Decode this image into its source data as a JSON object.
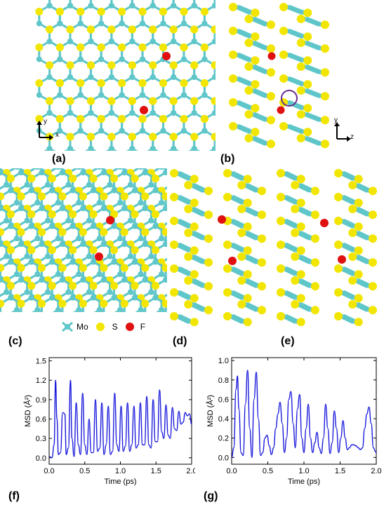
{
  "panels": {
    "a": "(a)",
    "b": "(b)",
    "c": "(c)",
    "d": "(d)",
    "e": "(e)",
    "f": "(f)",
    "g": "(g)"
  },
  "axes_glyphs": {
    "a": {
      "v": "y",
      "h": "x"
    },
    "b": {
      "v": "y",
      "h": "z"
    }
  },
  "legend": {
    "mo": "Mo",
    "s": "S",
    "f": "F",
    "colors": {
      "mo": "#5fc6c9",
      "s": "#f2e600",
      "f": "#e01010"
    }
  },
  "chart_data": [
    {
      "type": "line",
      "panel": "(f)",
      "xlabel": "Time (ps)",
      "ylabel": "MSD (Å²)",
      "xlim": [
        0.0,
        2.0
      ],
      "ylim": [
        -0.1,
        1.55
      ],
      "xticks": [
        "0.0",
        "0.5",
        "1.0",
        "1.5",
        "2.0"
      ],
      "yticks": [
        "0.0",
        "0.3",
        "0.6",
        "0.9",
        "1.2",
        "1.5"
      ],
      "color": "#1a1adc",
      "x": [
        0.0,
        0.04,
        0.07,
        0.09,
        0.11,
        0.13,
        0.16,
        0.19,
        0.22,
        0.24,
        0.27,
        0.3,
        0.32,
        0.35,
        0.38,
        0.41,
        0.44,
        0.47,
        0.5,
        0.53,
        0.56,
        0.59,
        0.62,
        0.65,
        0.68,
        0.71,
        0.74,
        0.77,
        0.8,
        0.83,
        0.86,
        0.89,
        0.92,
        0.95,
        0.98,
        1.01,
        1.04,
        1.07,
        1.1,
        1.13,
        1.16,
        1.19,
        1.22,
        1.25,
        1.28,
        1.31,
        1.34,
        1.37,
        1.4,
        1.43,
        1.46,
        1.49,
        1.52,
        1.55,
        1.58,
        1.61,
        1.64,
        1.67,
        1.7,
        1.73,
        1.76,
        1.79,
        1.82,
        1.85,
        1.88,
        1.91,
        1.94,
        1.97,
        2.0
      ],
      "y": [
        0.02,
        0.0,
        0.2,
        1.2,
        0.6,
        0.05,
        0.08,
        0.7,
        0.68,
        0.05,
        0.15,
        1.2,
        0.3,
        0.02,
        0.85,
        0.2,
        0.05,
        1.0,
        0.2,
        0.05,
        0.6,
        0.08,
        0.08,
        0.9,
        0.1,
        0.15,
        0.85,
        0.05,
        0.2,
        0.8,
        0.05,
        0.1,
        1.0,
        0.2,
        0.1,
        0.8,
        0.1,
        0.18,
        0.85,
        0.1,
        0.2,
        0.8,
        0.15,
        0.2,
        0.85,
        0.2,
        0.2,
        0.95,
        0.2,
        0.15,
        0.9,
        0.25,
        0.25,
        1.05,
        0.4,
        0.3,
        0.82,
        0.35,
        0.3,
        0.78,
        0.45,
        0.42,
        0.72,
        0.52,
        0.55,
        0.7,
        0.65,
        0.68,
        0.52
      ]
    },
    {
      "type": "line",
      "panel": "(g)",
      "xlabel": "Time (ps)",
      "ylabel": "MSD (Å²)",
      "xlim": [
        0.0,
        2.0
      ],
      "ylim": [
        -0.07,
        1.03
      ],
      "xticks": [
        "0.0",
        "0.5",
        "1.0",
        "1.5",
        "2.0"
      ],
      "yticks": [
        "0.0",
        "0.2",
        "0.4",
        "0.6",
        "0.8",
        "1.0"
      ],
      "color": "#1a1adc",
      "x": [
        0.0,
        0.03,
        0.06,
        0.08,
        0.1,
        0.13,
        0.16,
        0.19,
        0.22,
        0.25,
        0.28,
        0.31,
        0.34,
        0.37,
        0.4,
        0.43,
        0.46,
        0.49,
        0.52,
        0.55,
        0.58,
        0.61,
        0.64,
        0.67,
        0.7,
        0.73,
        0.76,
        0.79,
        0.82,
        0.85,
        0.88,
        0.91,
        0.94,
        0.97,
        1.0,
        1.03,
        1.06,
        1.09,
        1.12,
        1.15,
        1.18,
        1.21,
        1.24,
        1.27,
        1.3,
        1.33,
        1.36,
        1.39,
        1.42,
        1.45,
        1.48,
        1.51,
        1.54,
        1.57,
        1.6,
        1.63,
        1.66,
        1.69,
        1.72,
        1.75,
        1.78,
        1.81,
        1.84,
        1.87,
        1.9,
        1.93,
        1.96,
        1.99,
        2.0
      ],
      "y": [
        0.0,
        0.1,
        0.7,
        0.84,
        0.5,
        0.05,
        0.02,
        0.55,
        0.9,
        0.3,
        0.0,
        0.6,
        0.88,
        0.4,
        0.02,
        0.05,
        0.2,
        0.23,
        0.12,
        0.03,
        0.1,
        0.3,
        0.45,
        0.57,
        0.35,
        0.05,
        0.2,
        0.6,
        0.68,
        0.35,
        0.1,
        0.5,
        0.65,
        0.2,
        0.05,
        0.3,
        0.55,
        0.2,
        0.05,
        0.15,
        0.26,
        0.1,
        0.04,
        0.2,
        0.55,
        0.3,
        0.04,
        0.15,
        0.48,
        0.3,
        0.05,
        0.2,
        0.38,
        0.2,
        0.08,
        0.1,
        0.13,
        0.13,
        0.12,
        0.1,
        0.08,
        0.1,
        0.3,
        0.45,
        0.52,
        0.35,
        0.1,
        0.06,
        0.05
      ]
    }
  ]
}
